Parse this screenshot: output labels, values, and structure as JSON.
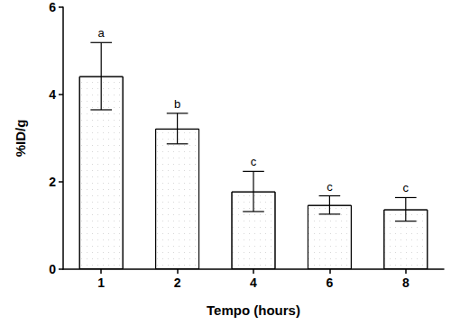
{
  "chart_data": {
    "type": "bar",
    "x_label": "Tempo (hours)",
    "y_label": "%ID/g",
    "categories": [
      "1",
      "2",
      "4",
      "6",
      "8"
    ],
    "values": [
      4.42,
      3.22,
      1.78,
      1.47,
      1.37
    ],
    "errors": [
      0.77,
      0.35,
      0.46,
      0.21,
      0.27
    ],
    "annotations": [
      "a",
      "b",
      "c",
      "c",
      "c"
    ],
    "color": "#ffffff",
    "ylim": [
      0,
      6
    ],
    "yticks": [
      0,
      2,
      4,
      6
    ],
    "grid": false
  }
}
